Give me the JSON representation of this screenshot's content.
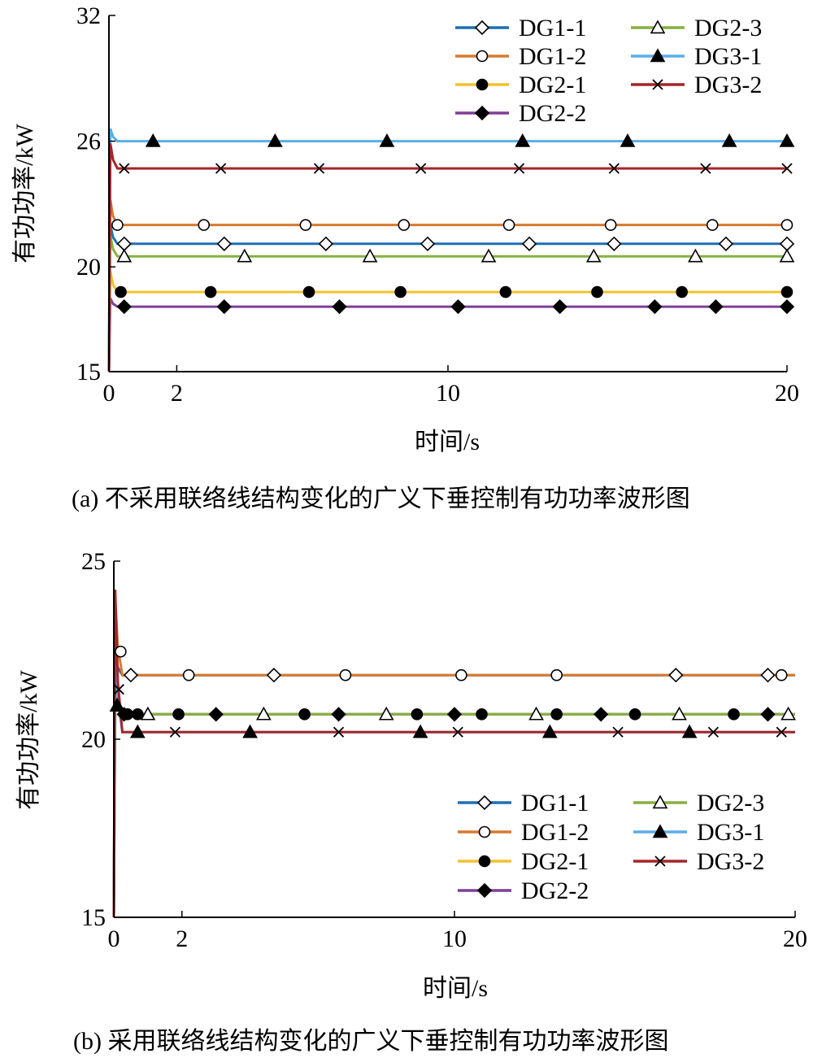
{
  "chart_data": [
    {
      "type": "line",
      "panel": "a",
      "caption": "(a) 不采用联络线结构变化的广义下垂控制有功功率波形图",
      "xlabel": "时间/s",
      "ylabel": "有功功率/kW",
      "xlim": [
        0,
        20
      ],
      "ylim": [
        15,
        32
      ],
      "xticks": [
        0,
        2,
        10,
        20
      ],
      "yticks": [
        15,
        20,
        26,
        32
      ],
      "legend": {
        "placement": "top-right",
        "columns": 2
      },
      "grid": false,
      "series": [
        {
          "name": "DG1-1",
          "color": "#1f6fb4",
          "marker": "diamond-open",
          "steady": 21.1,
          "peak": 22.0,
          "marker_times": [
            0.45,
            3.4,
            6.4,
            9.4,
            12.4,
            14.9,
            18.2,
            20.0
          ]
        },
        {
          "name": "DG1-2",
          "color": "#d77a2f",
          "marker": "circle-open",
          "steady": 22.0,
          "peak": 23.2,
          "marker_times": [
            0.25,
            2.8,
            5.8,
            8.7,
            11.8,
            14.8,
            17.8,
            20.0
          ]
        },
        {
          "name": "DG2-1",
          "color": "#f2c12e",
          "marker": "circle-filled",
          "steady": 18.8,
          "peak": 19.8,
          "marker_times": [
            0.35,
            3.0,
            5.9,
            8.6,
            11.7,
            14.4,
            16.9,
            20.0
          ]
        },
        {
          "name": "DG2-2",
          "color": "#7e3f98",
          "marker": "diamond-filled",
          "steady": 18.1,
          "peak": 18.5,
          "marker_times": [
            0.45,
            3.4,
            6.8,
            10.3,
            13.3,
            16.1,
            17.9,
            20.0
          ]
        },
        {
          "name": "DG2-3",
          "color": "#86b041",
          "marker": "triangle-open",
          "steady": 20.5,
          "peak": 21.5,
          "marker_times": [
            0.45,
            4.0,
            7.7,
            11.2,
            14.3,
            17.3,
            20.0
          ]
        },
        {
          "name": "DG3-1",
          "color": "#5aaee8",
          "marker": "triangle-filled",
          "steady": 26.0,
          "peak": 26.6,
          "marker_times": [
            1.3,
            4.9,
            8.2,
            12.2,
            15.3,
            18.3,
            20.0
          ]
        },
        {
          "name": "DG3-2",
          "color": "#a5252a",
          "marker": "x",
          "steady": 24.7,
          "peak": 25.9,
          "marker_times": [
            0.45,
            3.3,
            6.2,
            9.2,
            12.1,
            14.9,
            17.6,
            20.0
          ]
        }
      ]
    },
    {
      "type": "line",
      "panel": "b",
      "caption": "(b) 采用联络线结构变化的广义下垂控制有功功率波形图",
      "xlabel": "时间/s",
      "ylabel": "有功功率/kW",
      "xlim": [
        0,
        20
      ],
      "ylim": [
        15,
        25
      ],
      "xticks": [
        0,
        2,
        10,
        20
      ],
      "yticks": [
        15,
        20,
        25
      ],
      "legend": {
        "placement": "bottom-right",
        "columns": 2
      },
      "grid": false,
      "series": [
        {
          "name": "DG1-1",
          "color": "#1f6fb4",
          "marker": "diamond-open",
          "steady": 21.8,
          "peak": 22.4,
          "marker_times": [
            0.5,
            4.7,
            16.5,
            19.2
          ]
        },
        {
          "name": "DG1-2",
          "color": "#d77a2f",
          "marker": "circle-open",
          "steady": 21.8,
          "peak": 24.0,
          "marker_times": [
            0.2,
            2.2,
            6.8,
            10.2,
            13.0,
            19.6
          ]
        },
        {
          "name": "DG2-1",
          "color": "#f2c12e",
          "marker": "circle-filled",
          "steady": 20.7,
          "peak": 21.2,
          "marker_times": [
            0.4,
            0.7,
            1.9,
            5.6,
            8.9,
            10.8,
            13.0,
            15.3,
            18.2
          ]
        },
        {
          "name": "DG2-2",
          "color": "#7e3f98",
          "marker": "diamond-filled",
          "steady": 20.7,
          "peak": 21.0,
          "marker_times": [
            0.3,
            3.0,
            6.6,
            10.0,
            14.3,
            19.2
          ]
        },
        {
          "name": "DG2-3",
          "color": "#86b041",
          "marker": "triangle-open",
          "steady": 20.7,
          "peak": 21.5,
          "marker_times": [
            0.1,
            1.0,
            4.4,
            8.0,
            12.4,
            16.6,
            19.8
          ]
        },
        {
          "name": "DG3-1",
          "color": "#5aaee8",
          "marker": "triangle-filled",
          "steady": 20.2,
          "peak": 22.7,
          "marker_times": [
            0.1,
            0.7,
            4.0,
            9.0,
            12.8,
            16.9
          ]
        },
        {
          "name": "DG3-2",
          "color": "#a5252a",
          "marker": "x",
          "steady": 20.2,
          "peak": 24.2,
          "marker_times": [
            0.15,
            1.8,
            6.6,
            10.1,
            14.8,
            17.6,
            19.6
          ]
        }
      ]
    }
  ]
}
